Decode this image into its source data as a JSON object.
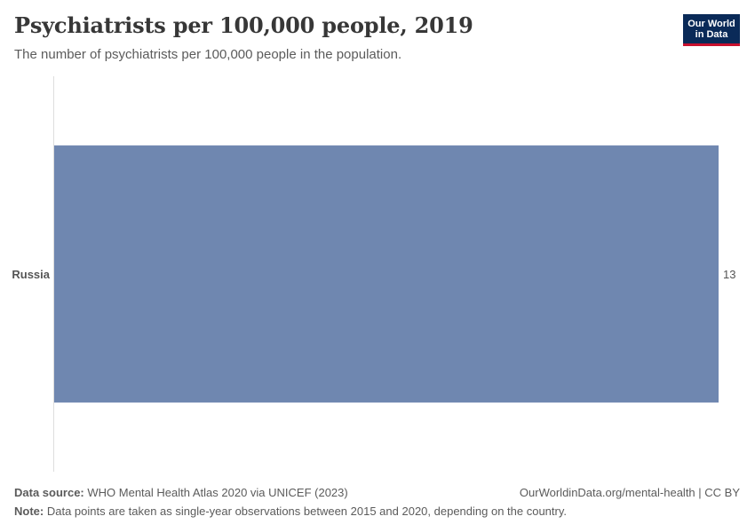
{
  "header": {
    "title": "Psychiatrists per 100,000 people, 2019",
    "subtitle": "The number of psychiatrists per 100,000 people in the population."
  },
  "logo": {
    "line1": "Our World",
    "line2": "in Data"
  },
  "chart_data": {
    "type": "bar",
    "orientation": "horizontal",
    "categories": [
      "Russia"
    ],
    "values": [
      13
    ],
    "value_labels": [
      "13"
    ],
    "xlim": [
      0,
      13
    ],
    "grid": false,
    "bar_color": "#6f87b0"
  },
  "footer": {
    "source_label": "Data source:",
    "source_text": "WHO Mental Health Atlas 2020 via UNICEF (2023)",
    "url_license": "OurWorldinData.org/mental-health | CC BY",
    "note_label": "Note:",
    "note_text": "Data points are taken as single-year observations between 2015 and 2020, depending on the country."
  }
}
